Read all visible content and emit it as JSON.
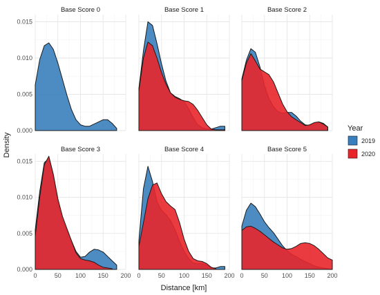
{
  "chart_data": {
    "type": "area",
    "subtype": "faceted density plot",
    "xlabel": "Distance [km]",
    "ylabel": "Density",
    "xlim": [
      0,
      200
    ],
    "ylim": [
      0,
      0.016
    ],
    "x_ticks": [
      "0",
      "50",
      "100",
      "150",
      "200"
    ],
    "y_ticks": [
      "0.000",
      "0.005",
      "0.010",
      "0.015"
    ],
    "grid": true,
    "legend": {
      "title": "Year",
      "placement": "right",
      "items": [
        {
          "label": "2019",
          "color": "#3a7fbd"
        },
        {
          "label": "2020",
          "color": "#e8262b"
        }
      ]
    },
    "x": [
      0,
      10,
      20,
      30,
      40,
      50,
      60,
      70,
      80,
      90,
      100,
      110,
      120,
      130,
      140,
      150,
      160,
      170,
      180,
      190,
      200
    ],
    "panels": [
      {
        "title": "Base Score 0",
        "series": [
          {
            "name": "2019",
            "values": [
              0.0063,
              0.0098,
              0.0117,
              0.0121,
              0.0112,
              0.0093,
              0.0071,
              0.0049,
              0.0029,
              0.0015,
              0.0008,
              0.0006,
              0.0006,
              0.0009,
              0.0012,
              0.0015,
              0.0015,
              0.001,
              0.0003,
              null,
              null
            ]
          }
        ]
      },
      {
        "title": "Base Score 1",
        "series": [
          {
            "name": "2019",
            "values": [
              0.0058,
              0.011,
              0.015,
              0.0145,
              0.012,
              0.0092,
              0.0068,
              0.0052,
              0.0047,
              0.0044,
              0.004,
              0.003,
              0.0018,
              0.0008,
              0.0004,
              0.0002,
              0.0002,
              0.0004,
              0.0006,
              0.0006,
              null
            ]
          },
          {
            "name": "2020",
            "values": [
              0.0055,
              0.01,
              0.0122,
              0.0117,
              0.01,
              0.008,
              0.0064,
              0.0052,
              0.0046,
              0.0043,
              0.0041,
              0.004,
              0.0036,
              0.0028,
              0.0018,
              0.0008,
              0.0002,
              0.0001,
              0.0001,
              0.0001,
              null
            ]
          }
        ]
      },
      {
        "title": "Base Score 2",
        "series": [
          {
            "name": "2019",
            "values": [
              0.0071,
              0.0097,
              0.0113,
              0.0108,
              0.0088,
              0.0062,
              0.0044,
              0.0033,
              0.0026,
              0.0024,
              0.0025,
              0.0025,
              0.002,
              0.0013,
              0.0008,
              0.0007,
              0.001,
              0.0012,
              0.001,
              0.0005,
              null
            ]
          },
          {
            "name": "2020",
            "values": [
              0.0069,
              0.0093,
              0.0106,
              0.0096,
              0.0085,
              0.0081,
              0.0077,
              0.0067,
              0.0052,
              0.0037,
              0.0026,
              0.0019,
              0.0015,
              0.0011,
              0.0007,
              0.0008,
              0.0011,
              0.0012,
              0.0009,
              0.0005,
              null
            ]
          }
        ]
      },
      {
        "title": "Base Score 3",
        "series": [
          {
            "name": "2019",
            "values": [
              0.0055,
              0.0108,
              0.0148,
              0.0154,
              0.0128,
              0.0093,
              0.0069,
              0.0054,
              0.004,
              0.0025,
              0.0017,
              0.0018,
              0.0024,
              0.0028,
              0.0027,
              0.0024,
              0.0018,
              0.0012,
              0.0006,
              null,
              null
            ]
          },
          {
            "name": "2020",
            "values": [
              0.0046,
              0.01,
              0.0145,
              0.0157,
              0.0132,
              0.0098,
              0.0074,
              0.0057,
              0.004,
              0.0023,
              0.0015,
              0.0013,
              0.0012,
              0.001,
              0.0006,
              0.0003,
              0.0002,
              0.0001,
              null,
              null,
              null
            ]
          }
        ]
      },
      {
        "title": "Base Score 4",
        "series": [
          {
            "name": "2019",
            "values": [
              0.004,
              0.0112,
              0.0143,
              0.0122,
              0.0094,
              0.0082,
              0.0076,
              0.0068,
              0.0055,
              0.0039,
              0.0025,
              0.0015,
              0.0009,
              0.0008,
              0.0008,
              0.0006,
              0.0002,
              0.0002,
              0.0004,
              0.0004,
              null
            ]
          },
          {
            "name": "2020",
            "values": [
              0.0032,
              0.0065,
              0.0098,
              0.0117,
              0.012,
              0.0105,
              0.0094,
              0.0088,
              0.0083,
              0.0065,
              0.0042,
              0.0025,
              0.0015,
              0.0012,
              0.0011,
              0.0008,
              0.0003,
              0.0001,
              null,
              null,
              null
            ]
          }
        ]
      },
      {
        "title": "Base Score 5",
        "series": [
          {
            "name": "2019",
            "values": [
              0.006,
              0.0082,
              0.0092,
              0.0087,
              0.0077,
              0.0066,
              0.0058,
              0.0051,
              0.0042,
              0.0033,
              0.0026,
              0.0021,
              0.0018,
              0.0014,
              0.0011,
              0.0008,
              0.0005,
              0.0003,
              0.0002,
              0.0001,
              0.0
            ]
          },
          {
            "name": "2020",
            "values": [
              0.0054,
              0.0059,
              0.006,
              0.0057,
              0.0053,
              0.0048,
              0.0043,
              0.0038,
              0.0034,
              0.003,
              0.0028,
              0.0029,
              0.0032,
              0.0036,
              0.0037,
              0.0036,
              0.0033,
              0.0028,
              0.0022,
              0.0016,
              0.0013
            ]
          }
        ]
      }
    ]
  }
}
